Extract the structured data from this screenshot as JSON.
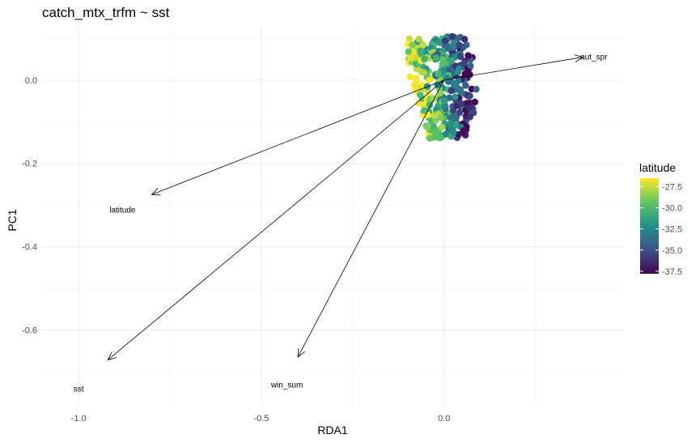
{
  "chart_data": {
    "type": "scatter",
    "title": "catch_mtx_trfm ~ sst",
    "xlabel": "RDA1",
    "ylabel": "PC1",
    "xlim": [
      -1.1,
      0.49
    ],
    "ylim": [
      -0.78,
      0.13
    ],
    "x_ticks": [
      -1.0,
      -0.5,
      0.0
    ],
    "x_tick_labels": [
      "-1.0",
      "-0.5",
      "0.0"
    ],
    "y_ticks": [
      0.0,
      -0.2,
      -0.4,
      -0.6
    ],
    "y_tick_labels": [
      "0.0",
      "-0.2",
      "-0.4",
      "-0.6"
    ],
    "grid": true,
    "legend": {
      "title": "latitude",
      "position": "right",
      "min": -37.8,
      "max": -26.5,
      "ticks": [
        -27.5,
        -30.0,
        -32.5,
        -35.0,
        -37.5
      ],
      "tick_labels": [
        "-27.5",
        "-30.0",
        "-32.5",
        "-35.0",
        "-37.5"
      ],
      "colors": [
        "#440154",
        "#3b528b",
        "#21908c",
        "#5dc863",
        "#fde725"
      ]
    },
    "arrows": [
      {
        "label": "aut_spr",
        "x_end": 0.38,
        "y_end": 0.055,
        "label_x": 0.41,
        "label_y": 0.057
      },
      {
        "label": "latitude",
        "x_end": -0.8,
        "y_end": -0.275,
        "label_x": -0.88,
        "label_y": -0.31
      },
      {
        "label": "sst",
        "x_end": -0.92,
        "y_end": -0.672,
        "label_x": -1.0,
        "label_y": -0.74
      },
      {
        "label": "win_sum",
        "x_end": -0.4,
        "y_end": -0.665,
        "label_x": -0.43,
        "label_y": -0.73
      }
    ],
    "points_cloud": {
      "x_range": [
        -0.1,
        0.09
      ],
      "y_range": [
        -0.14,
        0.105
      ],
      "count": 340
    }
  }
}
